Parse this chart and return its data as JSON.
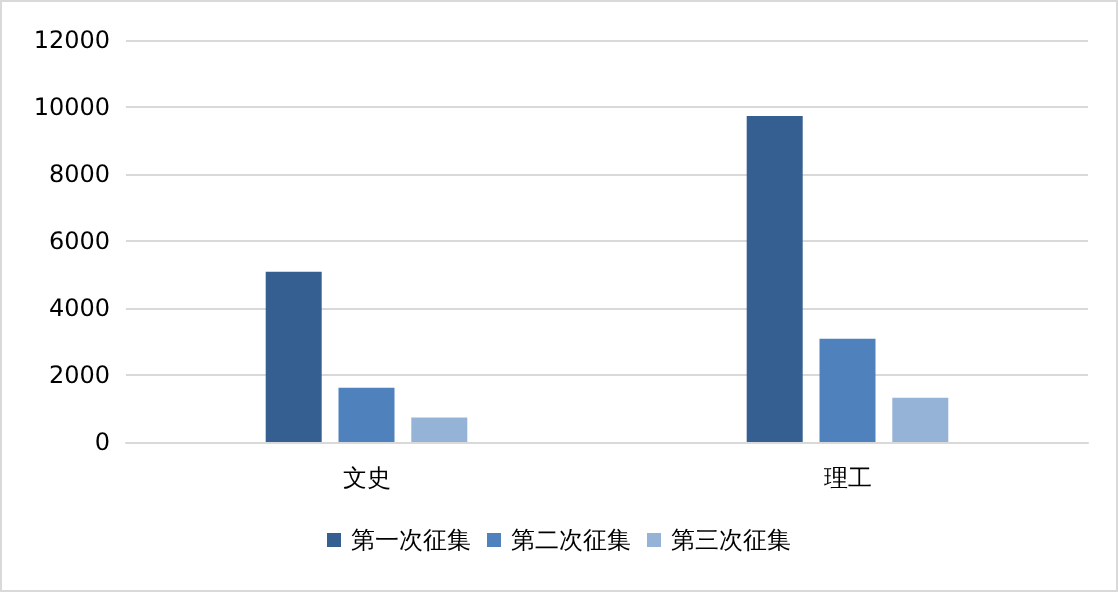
{
  "chart_data": {
    "type": "bar",
    "categories": [
      "文史",
      "理工"
    ],
    "series": [
      {
        "name": "第一次征集",
        "color": "#365f91",
        "values": [
          5080,
          9730
        ]
      },
      {
        "name": "第二次征集",
        "color": "#4f81bd",
        "values": [
          1620,
          3080
        ]
      },
      {
        "name": "第三次征集",
        "color": "#95b3d7",
        "values": [
          730,
          1320
        ]
      }
    ],
    "ylim": [
      0,
      12000
    ],
    "yticks": [
      0,
      2000,
      4000,
      6000,
      8000,
      10000,
      12000
    ],
    "grid": "y",
    "legend": "bottom"
  }
}
